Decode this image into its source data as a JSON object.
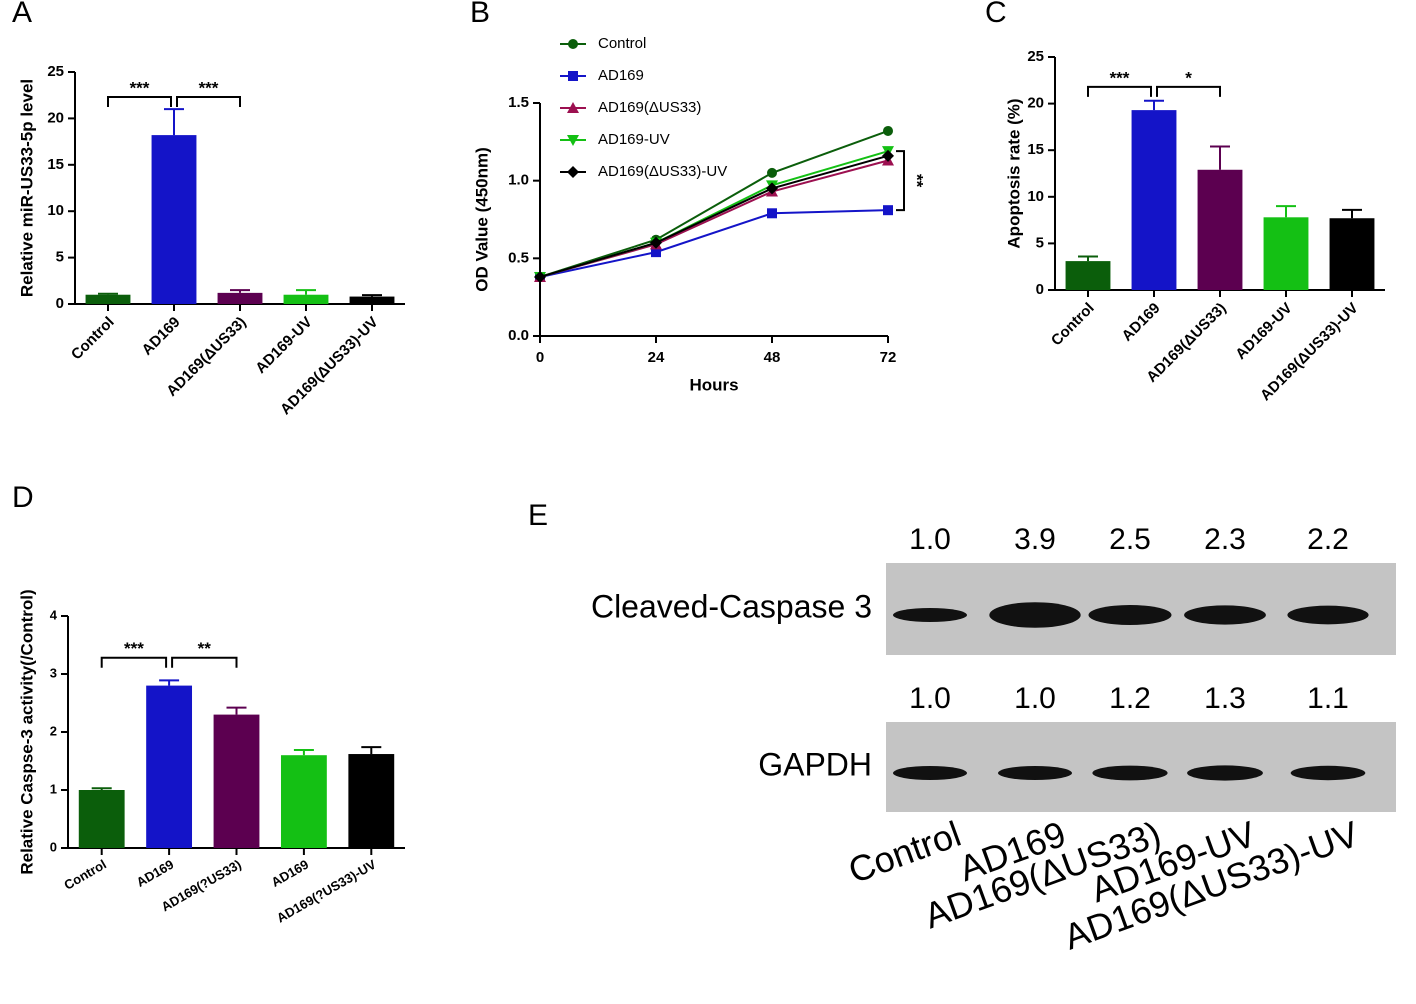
{
  "chart_data": [
    {
      "type": "bar",
      "panel": "A",
      "ylabel": "Relative miR-US33-5p level",
      "categories": [
        "Control",
        "AD169",
        "AD169(ΔUS33)",
        "AD169-UV",
        "AD169(ΔUS33)-UV"
      ],
      "values": [
        1.0,
        18.2,
        1.2,
        1.0,
        0.8
      ],
      "errors": [
        0.1,
        2.8,
        0.3,
        0.5,
        0.15
      ],
      "colors": [
        "#0b5e0b",
        "#1414c8",
        "#5c0050",
        "#14c014",
        "#000000"
      ],
      "ylim": [
        0,
        25
      ],
      "yticks": [
        0,
        5,
        10,
        15,
        20,
        25
      ],
      "annotations": [
        "***",
        "***"
      ]
    },
    {
      "type": "line",
      "panel": "B",
      "xlabel": "Hours",
      "ylabel": "OD Value (450nm)",
      "x": [
        0,
        24,
        48,
        72
      ],
      "xlim": [
        0,
        72
      ],
      "xticks": [
        0,
        24,
        48,
        72
      ],
      "ylim": [
        0,
        1.5
      ],
      "yticks": [
        {
          "value": 0,
          "label": "0.0"
        },
        0.5,
        {
          "value": 1,
          "label": "1.0"
        },
        1.5
      ],
      "series": [
        {
          "name": "Control",
          "color": "#0b5e0b",
          "marker": "circle",
          "values": [
            0.38,
            0.62,
            1.05,
            1.32
          ]
        },
        {
          "name": "AD169",
          "color": "#1414c8",
          "marker": "square",
          "values": [
            0.38,
            0.54,
            0.79,
            0.81
          ]
        },
        {
          "name": "AD169(ΔUS33)",
          "color": "#9c1050",
          "marker": "triangle",
          "values": [
            0.38,
            0.59,
            0.93,
            1.13
          ]
        },
        {
          "name": "AD169-UV",
          "color": "#14c014",
          "marker": "triangle-down",
          "values": [
            0.38,
            0.6,
            0.97,
            1.19
          ]
        },
        {
          "name": "AD169(ΔUS33)-UV",
          "color": "#000000",
          "marker": "diamond",
          "values": [
            0.38,
            0.6,
            0.95,
            1.16
          ]
        }
      ],
      "legend": "upper-left",
      "annotations": [
        "**"
      ]
    },
    {
      "type": "bar",
      "panel": "C",
      "ylabel": "Apoptosis rate (%)",
      "categories": [
        "Control",
        "AD169",
        "AD169(ΔUS33)",
        "AD169-UV",
        "AD169(ΔUS33)-UV"
      ],
      "values": [
        3.1,
        19.3,
        12.9,
        7.8,
        7.7
      ],
      "errors": [
        0.5,
        1.0,
        2.5,
        1.2,
        0.9
      ],
      "colors": [
        "#0b5e0b",
        "#1414c8",
        "#5c0050",
        "#14c014",
        "#000000"
      ],
      "ylim": [
        0,
        25
      ],
      "yticks": [
        0,
        5,
        10,
        15,
        20,
        25
      ],
      "annotations": [
        "***",
        "*"
      ]
    },
    {
      "type": "bar",
      "panel": "D",
      "ylabel": "Relative Caspse-3 activity(/Control)",
      "categories": [
        "Control",
        "AD169",
        "AD169(?US33)",
        "AD169",
        "AD169(?US33)-UV"
      ],
      "values": [
        1.0,
        2.8,
        2.3,
        1.6,
        1.62
      ],
      "errors": [
        0.03,
        0.09,
        0.12,
        0.09,
        0.12
      ],
      "colors": [
        "#0b5e0b",
        "#1414c8",
        "#5c0050",
        "#14c014",
        "#000000"
      ],
      "ylim": [
        0,
        4
      ],
      "yticks": [
        0,
        1,
        2,
        3,
        4
      ],
      "annotations": [
        "***",
        "**"
      ]
    },
    {
      "type": "blot",
      "panel": "E",
      "categories": [
        "Control",
        "AD169",
        "AD169(ΔUS33)",
        "AD169-UV",
        "AD169(ΔUS33)-UV"
      ],
      "rows": [
        {
          "name": "Cleaved-Caspase 3",
          "values": [
            1.0,
            3.9,
            2.5,
            2.3,
            2.2
          ],
          "value_labels": [
            "1.0",
            "3.9",
            "2.5",
            "2.3",
            "2.2"
          ]
        },
        {
          "name": "GAPDH",
          "values": [
            1.0,
            1.0,
            1.2,
            1.3,
            1.1
          ],
          "value_labels": [
            "1.0",
            "1.0",
            "1.2",
            "1.3",
            "1.1"
          ]
        }
      ]
    }
  ]
}
